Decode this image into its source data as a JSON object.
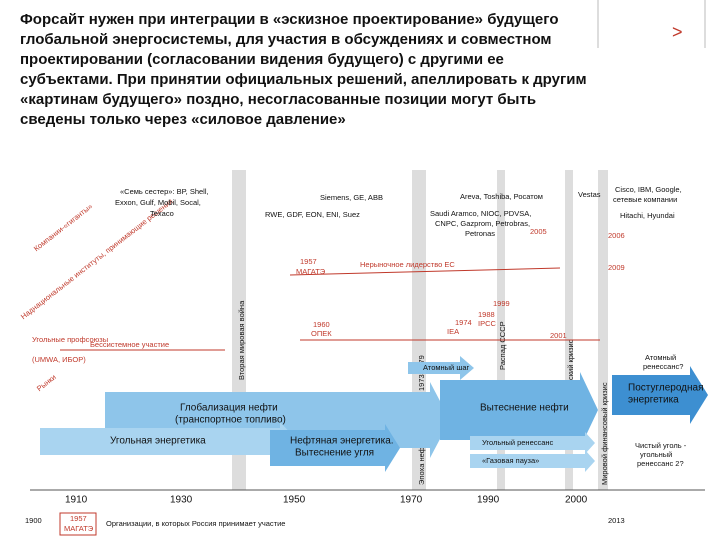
{
  "header": {
    "title": "Форсайт нужен при интеграции в «эскизное проектирование» будущего глобальной энергосистемы, для участия в обсуждениях и совместном проектировании (согласовании видения будущего) с другими ее субъектами. При принятии официальных решений, апеллировать к другим «картинам будущего» поздно, несогласованные позиции могут быть сведены только через «силовое давление»"
  },
  "nav": {
    "next": ">"
  },
  "rows": [
    "Компании-«гиганты»",
    "Наднациональные институты, принимающие решения",
    "Рынки"
  ],
  "companies": [
    "«Семь сестер»: BP, Shell,",
    "Exxon, Gulf, Mobil, Socal,",
    "Texaco",
    "Siemens, GE, ABB",
    "Areva, Toshiba, Росатом",
    "Vestas",
    "Cisco, IBM, Google,",
    "сетевые компании",
    "RWE, GDF, EON, ENI, Suez",
    "Saudi Aramco, NIOC, PDVSA,",
    "CNPC, Gazprom, Petrobras,",
    "Petronas",
    "Hitachi, Hyundai"
  ],
  "institutions": [
    "1957",
    "МАГАТЭ",
    "Нерыночное лидерство ЕС",
    "1960",
    "ОПЕК",
    "1974",
    "IEA",
    "1988",
    "IPCC",
    "1999",
    "2001",
    "2005",
    "2006",
    "2009",
    "Бессистемное участие",
    "Угольные профсоюзы",
    "(UMWA, ИБОР)"
  ],
  "events": [
    "Вторая мировая война",
    "Эпоха нефтяных кризисов 1973-1979",
    "Распад СССР",
    "Азиатский кризис",
    "Мировой финансовый кризис"
  ],
  "bands": [
    "Глобализация нефти",
    "(транспортное топливо)",
    "Угольная энергетика",
    "Нефтяная энергетика.",
    "Вытеснение угля",
    "Атомный шаг",
    "Вытеснение нефти",
    "Угольный ренессанс",
    "«Газовая пауза»",
    "Постуглеродная",
    "энергетика",
    "Атомный",
    "ренессанс?",
    "Чистый уголь -",
    "угольный",
    "ренессанс 2?"
  ],
  "axis": {
    "years": [
      "1910",
      "1930",
      "1950",
      "1970",
      "1990",
      "2000"
    ],
    "start": "1900",
    "end": "2013"
  },
  "legend": {
    "sample_year": "1957",
    "sample_name": "МАГАТЭ",
    "text": "Организации, в которых Россия принимает участие"
  }
}
